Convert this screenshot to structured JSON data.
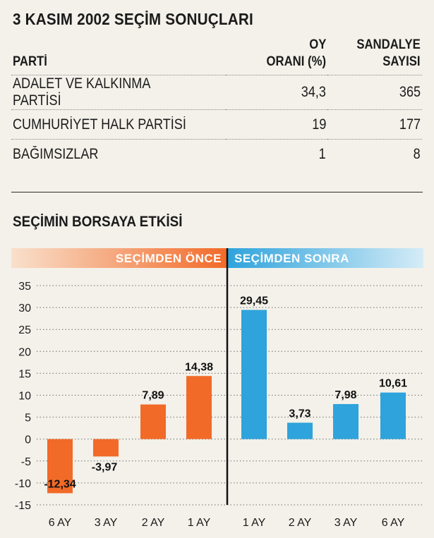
{
  "title": "3 KASIM 2002 SEÇİM SONUÇLARI",
  "table": {
    "headers": {
      "party": "PARTİ",
      "vote_line1": "OY",
      "vote_line2": "ORANI (%)",
      "seat_line1": "SANDALYE",
      "seat_line2": "SAYISI"
    },
    "rows": [
      {
        "party": "ADALET VE KALKINMA PARTİSİ",
        "vote": "34,3",
        "seats": "365"
      },
      {
        "party": "CUMHURİYET HALK PARTİSİ",
        "vote": "19",
        "seats": "177"
      },
      {
        "party": "BAĞIMSIZLAR",
        "vote": "1",
        "seats": "8"
      }
    ]
  },
  "colors": {
    "before": "#f26a28",
    "after": "#2ea3dc",
    "before_band_start": "#f9e0cc",
    "after_band_end": "#d5ecf7"
  },
  "chart_data": {
    "type": "bar",
    "title": "SEÇİMİN BORSAYA ETKİSİ",
    "groups": [
      {
        "name": "SEÇİMDEN ÖNCE",
        "categories": [
          "6 AY",
          "3 AY",
          "2 AY",
          "1 AY"
        ],
        "values": [
          -12.34,
          -3.97,
          7.89,
          14.38
        ],
        "labels": [
          "-12,34",
          "-3,97",
          "7,89",
          "14,38"
        ]
      },
      {
        "name": "SEÇİMDEN SONRA",
        "categories": [
          "1 AY",
          "2 AY",
          "3 AY",
          "6 AY"
        ],
        "values": [
          29.45,
          3.73,
          7.98,
          10.61
        ],
        "labels": [
          "29,45",
          "3,73",
          "7,98",
          "10,61"
        ]
      }
    ],
    "yticks": [
      35,
      30,
      25,
      20,
      15,
      10,
      5,
      0,
      -5,
      -10,
      -15
    ],
    "ylim": [
      -15,
      35
    ],
    "grid": "dotted horizontal",
    "xlabel": "",
    "ylabel": ""
  }
}
